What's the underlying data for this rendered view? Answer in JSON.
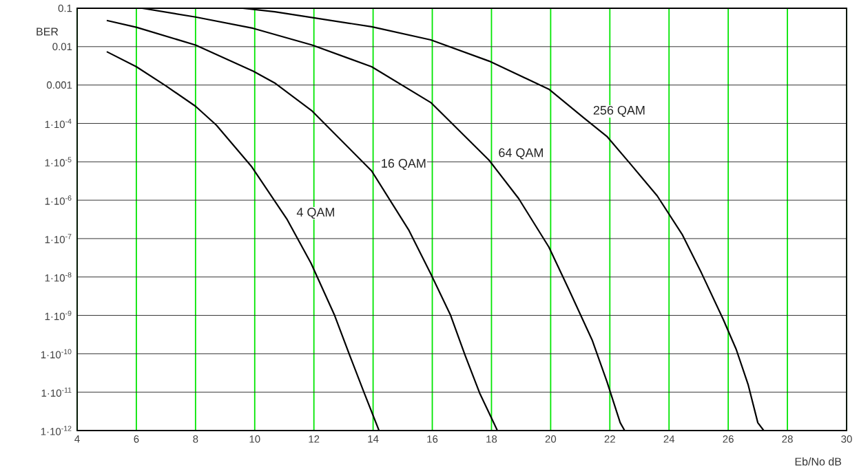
{
  "chart_data": {
    "type": "line",
    "xlabel": "Eb/No  dB",
    "ylabel": "BER",
    "log": true,
    "grid": true,
    "marker": "none",
    "line_style": "solid",
    "color": "#000000",
    "xlim": [
      4,
      30
    ],
    "ylim": [
      1e-12,
      0.1
    ],
    "xticks": [
      4,
      6,
      8,
      10,
      12,
      14,
      16,
      18,
      20,
      22,
      24,
      26,
      28,
      30
    ],
    "yticks": [
      0.1,
      0.01,
      0.001,
      {
        "value": 0.0001,
        "label": "1·10$^{-4}$"
      },
      {
        "value": 1e-05,
        "label": "1·10$^{-5}$"
      },
      {
        "value": 1e-06,
        "label": "1·10$^{-6}$"
      },
      {
        "value": 1e-07,
        "label": "1·10$^{-7}$"
      },
      {
        "value": 1e-08,
        "label": "1·10$^{-8}$"
      },
      {
        "value": 1e-09,
        "label": "1·10$^{-9}$"
      },
      {
        "value": 1e-10,
        "label": "1·10$^{-10}$"
      },
      {
        "value": 1e-11,
        "label": "1·10$^{-11}$"
      },
      {
        "value": 1e-12,
        "label": "1·10$^{-12}$"
      }
    ],
    "series": [
      {
        "name": "4 QAM",
        "x": [
          5,
          6,
          7,
          8,
          8.7,
          9.9,
          11.1,
          11.9,
          12.7,
          13.2,
          13.7,
          14.2
        ],
        "values": [
          0.0074,
          0.003,
          0.00095,
          0.00028,
          9.1e-05,
          7.4e-06,
          3.1e-07,
          2.3e-08,
          1e-09,
          9.5e-11,
          9.5e-12,
          1e-12
        ]
      },
      {
        "name": "16 QAM",
        "x": [
          5,
          6,
          8,
          9.95,
          10.7,
          11.94,
          13.95,
          15.2,
          15.95,
          16.62,
          17.1,
          17.6,
          18.2
        ],
        "values": [
          0.048,
          0.032,
          0.011,
          0.0023,
          0.0011,
          0.00021,
          5.8e-06,
          1.7e-07,
          1.2e-08,
          1e-09,
          9.5e-11,
          9.5e-12,
          1e-12
        ]
      },
      {
        "name": "64 QAM",
        "x": [
          6.2,
          8,
          9.95,
          11.94,
          13.95,
          15.95,
          17.92,
          18.92,
          19.94,
          20.6,
          21.4,
          21.9,
          22.35,
          22.5
        ],
        "values": [
          0.1,
          0.059,
          0.03,
          0.011,
          0.003,
          0.00035,
          1.1e-05,
          1.1e-06,
          6e-08,
          5e-09,
          2.3e-10,
          1.9e-11,
          1.6e-12,
          1e-12
        ]
      },
      {
        "name": "256 QAM",
        "x": [
          9.6,
          10.68,
          13.95,
          15.95,
          17.92,
          19.94,
          21.12,
          21.9,
          22.7,
          23.6,
          24.44,
          25.09,
          25.83,
          26.27,
          26.67,
          27.0,
          27.2
        ],
        "values": [
          0.1,
          0.081,
          0.033,
          0.015,
          0.0042,
          0.00078,
          0.00014,
          4.6e-05,
          8.7e-06,
          1.3e-06,
          1.3e-07,
          1.3e-08,
          7.9e-10,
          1.3e-10,
          1.6e-11,
          1.6e-12,
          1e-12
        ]
      }
    ]
  }
}
